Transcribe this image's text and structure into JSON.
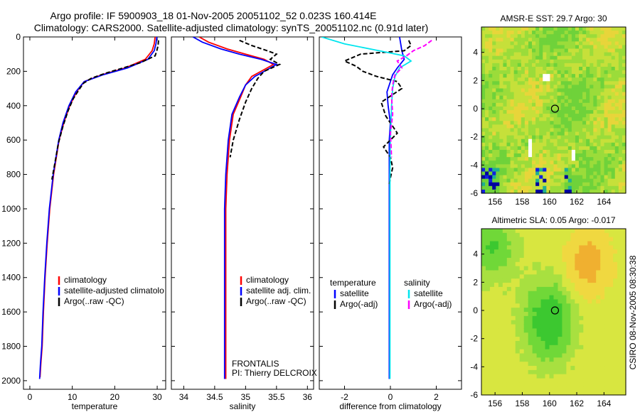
{
  "title_line1": "Argo profile: IF 5900903_18 01-Nov-2005 20051102_52 0.023S 160.414E",
  "title_line2": "Climatology: CARS2000. Satellite-adjusted climatology: synTS_20051102.nc (0.91d later)",
  "side_label": "CSIRO 08-Nov-2005 08:30:38",
  "chart_data": [
    {
      "id": "temperature",
      "type": "line",
      "xlabel": "temperature",
      "xlim": [
        -1.5,
        32
      ],
      "ylim": [
        0,
        2050
      ],
      "y_reversed": true,
      "xticks": [
        0,
        10,
        20,
        30
      ],
      "yticks": [
        0,
        200,
        400,
        600,
        800,
        1000,
        1200,
        1400,
        1600,
        1800,
        2000
      ],
      "legend": [
        "climatology",
        "satellite-adjusted climatolo",
        "Argo(..raw -QC)"
      ],
      "series": [
        {
          "name": "climatology",
          "color": "#ff0000",
          "dash": false,
          "x": [
            29.5,
            29.3,
            28.8,
            27.2,
            22.5,
            17,
            12.8,
            11,
            9.4,
            8,
            6.9,
            5.6,
            4.7,
            4.1,
            3.6,
            3.2,
            2.9,
            2.6,
            2.4
          ],
          "y": [
            0,
            40,
            80,
            130,
            180,
            220,
            260,
            320,
            400,
            500,
            600,
            800,
            1000,
            1200,
            1400,
            1600,
            1800,
            1900,
            1980
          ]
        },
        {
          "name": "satellite-adjusted climatolo",
          "color": "#0000ff",
          "dash": false,
          "x": [
            29.9,
            29.7,
            29.3,
            27.8,
            23,
            17.3,
            12.8,
            10.8,
            9.2,
            7.8,
            6.8,
            5.5,
            4.6,
            4.0,
            3.5,
            3.1,
            2.8,
            2.5,
            2.3
          ],
          "y": [
            0,
            40,
            80,
            130,
            180,
            220,
            260,
            320,
            400,
            500,
            600,
            800,
            1000,
            1200,
            1400,
            1600,
            1800,
            1900,
            1990
          ]
        },
        {
          "name": "Argo(..raw -QC)",
          "color": "#000000",
          "dash": true,
          "x": [
            30.3,
            30.2,
            29.9,
            29.5,
            26,
            22,
            18,
            14.5,
            12.6,
            11.5,
            10.2,
            9.0,
            7.8,
            6.7,
            6.0,
            5.2
          ],
          "y": [
            20,
            50,
            80,
            110,
            150,
            180,
            210,
            240,
            270,
            310,
            360,
            430,
            520,
            620,
            720,
            830
          ]
        }
      ]
    },
    {
      "id": "salinity",
      "type": "line",
      "xlabel": "salinity",
      "xlim": [
        33.8,
        36.1
      ],
      "ylim": [
        0,
        2050
      ],
      "y_reversed": true,
      "xticks": [
        34,
        34.5,
        35,
        35.5,
        36
      ],
      "xtick_labels": [
        "34",
        "34.5",
        "35",
        "35.5",
        "36"
      ],
      "legend": [
        "climatology",
        "satellite adj. clim.",
        "Argo(..raw -QC)"
      ],
      "annotation": [
        "FRONTALIS",
        "PI: Thierry DELCROIX"
      ],
      "series": [
        {
          "name": "climatology",
          "color": "#ff0000",
          "dash": false,
          "x": [
            34.25,
            34.4,
            34.7,
            35.0,
            35.3,
            35.45,
            35.3,
            35.1,
            35.0,
            34.92,
            34.8,
            34.74,
            34.7,
            34.68,
            34.68,
            34.68,
            34.68
          ],
          "y": [
            0,
            30,
            70,
            100,
            130,
            160,
            190,
            230,
            280,
            350,
            450,
            600,
            800,
            1000,
            1400,
            1800,
            1990
          ]
        },
        {
          "name": "satellite adj. clim.",
          "color": "#0000ff",
          "dash": false,
          "x": [
            34.15,
            34.3,
            34.6,
            34.9,
            35.25,
            35.5,
            35.35,
            35.15,
            35.0,
            34.9,
            34.78,
            34.72,
            34.68,
            34.66,
            34.66,
            34.66,
            34.66
          ],
          "y": [
            0,
            30,
            70,
            100,
            130,
            160,
            190,
            230,
            280,
            350,
            450,
            600,
            800,
            1000,
            1400,
            1800,
            1990
          ]
        },
        {
          "name": "Argo(..raw -QC)",
          "color": "#000000",
          "dash": true,
          "x": [
            34.9,
            35.1,
            35.35,
            35.5,
            35.4,
            35.55,
            35.3,
            35.2,
            35.1,
            35.0,
            34.9,
            34.8,
            34.75
          ],
          "y": [
            20,
            50,
            80,
            100,
            130,
            160,
            200,
            240,
            300,
            380,
            480,
            600,
            700
          ]
        }
      ]
    },
    {
      "id": "difference",
      "type": "line",
      "xlabel": "difference from climatology",
      "xlim": [
        -3.1,
        3.1
      ],
      "ylim": [
        0,
        2050
      ],
      "y_reversed": true,
      "xticks": [
        -2,
        0,
        2
      ],
      "legend_left": [
        "temperature",
        "satellite",
        "Argo(-adj)"
      ],
      "legend_right": [
        "salinity",
        "satellite",
        "Argo(-adj)"
      ],
      "series": [
        {
          "name": "temperature satellite",
          "color": "#0000ff",
          "dash": false,
          "x": [
            0.4,
            0.45,
            0.5,
            0.6,
            0.3,
            0.1,
            0,
            -0.15,
            -0.1,
            0,
            -0.05,
            -0.05,
            -0.05,
            -0.05,
            -0.05,
            -0.05
          ],
          "y": [
            0,
            40,
            80,
            130,
            180,
            220,
            260,
            320,
            400,
            500,
            600,
            800,
            1000,
            1400,
            1800,
            1990
          ]
        },
        {
          "name": "temperature Argo(-adj)",
          "color": "#000000",
          "dash": true,
          "x": [
            0.8,
            0.9,
            0.6,
            -1.3,
            -2.0,
            -1.5,
            -1.2,
            -0.6,
            0.3,
            0.5,
            -0.4,
            -0.2,
            0.3,
            -0.3,
            0.0,
            0.1,
            0.0,
            -0.05
          ],
          "y": [
            20,
            50,
            80,
            100,
            140,
            170,
            200,
            230,
            260,
            300,
            380,
            460,
            560,
            640,
            700,
            760,
            820,
            860
          ]
        },
        {
          "name": "salinity satellite",
          "color": "#00e5ee",
          "dash": false,
          "x": [
            -3.0,
            -2.0,
            -0.5,
            0.6,
            0.9,
            0.4,
            0.2,
            0.1,
            0.05,
            0.0,
            -0.02,
            -0.02,
            -0.02,
            -0.02,
            -0.02
          ],
          "y": [
            0,
            40,
            80,
            110,
            140,
            180,
            230,
            300,
            400,
            600,
            800,
            1000,
            1400,
            1800,
            1990
          ]
        },
        {
          "name": "salinity Argo(-adj)",
          "color": "#ff00ff",
          "dash": true,
          "x": [
            1.8,
            1.5,
            1.0,
            0.7,
            0.3,
            0.5,
            0.2,
            0.1,
            0.05,
            0.1,
            0.0,
            0.05
          ],
          "y": [
            20,
            50,
            80,
            110,
            140,
            180,
            220,
            280,
            350,
            450,
            560,
            700
          ]
        }
      ]
    },
    {
      "id": "sst_map",
      "type": "heatmap",
      "title": "AMSR-E SST: 29.7 Argo: 30",
      "xlim": [
        155,
        165.6
      ],
      "ylim": [
        -6,
        5.8
      ],
      "xticks": [
        156,
        158,
        160,
        162,
        164
      ],
      "yticks": [
        4,
        2,
        0,
        -2,
        -4,
        -6
      ],
      "marker": {
        "x": 160.4,
        "y": 0
      }
    },
    {
      "id": "sla_map",
      "type": "heatmap",
      "title": "Altimetric SLA: 0.05 Argo: -0.017",
      "xlim": [
        155,
        165.6
      ],
      "ylim": [
        -6,
        5.8
      ],
      "xticks": [
        156,
        158,
        160,
        162,
        164
      ],
      "yticks": [
        4,
        2,
        0,
        -2,
        -4,
        -6
      ],
      "marker": {
        "x": 160.4,
        "y": 0
      }
    }
  ]
}
